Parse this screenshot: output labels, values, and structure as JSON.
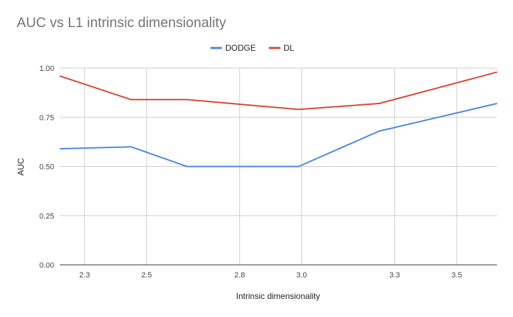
{
  "chart_data": {
    "type": "line",
    "title": "AUC vs L1 intrinsic dimensionality",
    "xlabel": "Intrinsic dimensionality",
    "ylabel": "AUC",
    "xlim": [
      2.22,
      3.63
    ],
    "ylim": [
      0,
      1
    ],
    "x_ticks": [
      2.3,
      2.5,
      2.8,
      3.0,
      3.3,
      3.5
    ],
    "x_tick_labels": [
      "2.3",
      "2.5",
      "2.8",
      "3.0",
      "3.3",
      "3.5"
    ],
    "y_ticks": [
      0,
      0.25,
      0.5,
      0.75,
      1.0
    ],
    "y_tick_labels": [
      "0.00",
      "0.25",
      "0.50",
      "0.75",
      "1.00"
    ],
    "grid": true,
    "legend_position": "top",
    "x": [
      2.22,
      2.45,
      2.63,
      2.99,
      3.25,
      3.63
    ],
    "series": [
      {
        "name": "DODGE",
        "color": "#4a86e8",
        "values": [
          0.59,
          0.6,
          0.5,
          0.5,
          0.68,
          0.82
        ]
      },
      {
        "name": "DL",
        "color": "#db4437",
        "values": [
          0.96,
          0.84,
          0.84,
          0.79,
          0.82,
          0.98
        ]
      }
    ]
  }
}
